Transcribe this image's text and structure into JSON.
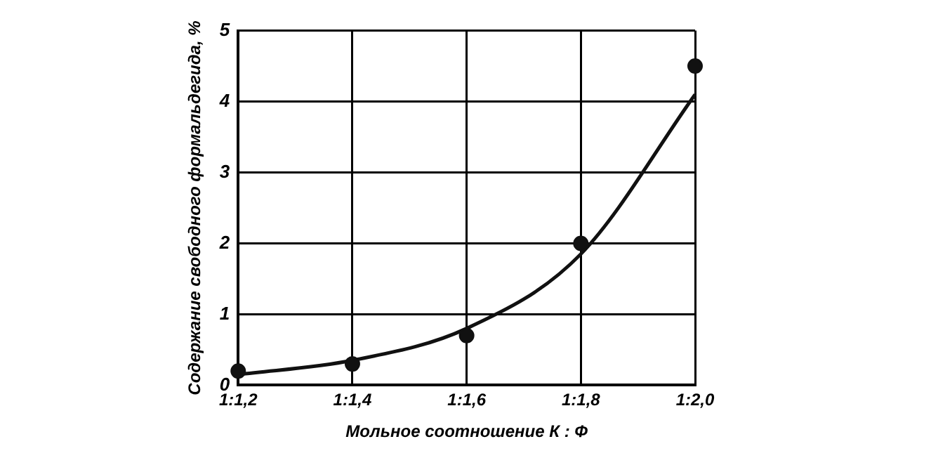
{
  "chart_data": {
    "type": "scatter",
    "xlabel": "Мольное соотношение К : Ф",
    "ylabel": "Содержание свободного формальдегида, %",
    "categories": [
      "1:1,2",
      "1:1,4",
      "1:1,6",
      "1:1,8",
      "1:2,0"
    ],
    "series": [
      {
        "color": "#111111",
        "marker": "circle",
        "values": [
          0.2,
          0.3,
          0.7,
          2.0,
          4.5
        ]
      },
      {
        "type": "line",
        "color": "#111111",
        "marker": "none",
        "line_style": "solid",
        "values": [
          0.15,
          0.35,
          0.8,
          1.85,
          4.1
        ]
      }
    ],
    "ylim": [
      0,
      5
    ],
    "yticks": [
      0,
      1,
      2,
      3,
      4,
      5
    ],
    "grid": true
  }
}
